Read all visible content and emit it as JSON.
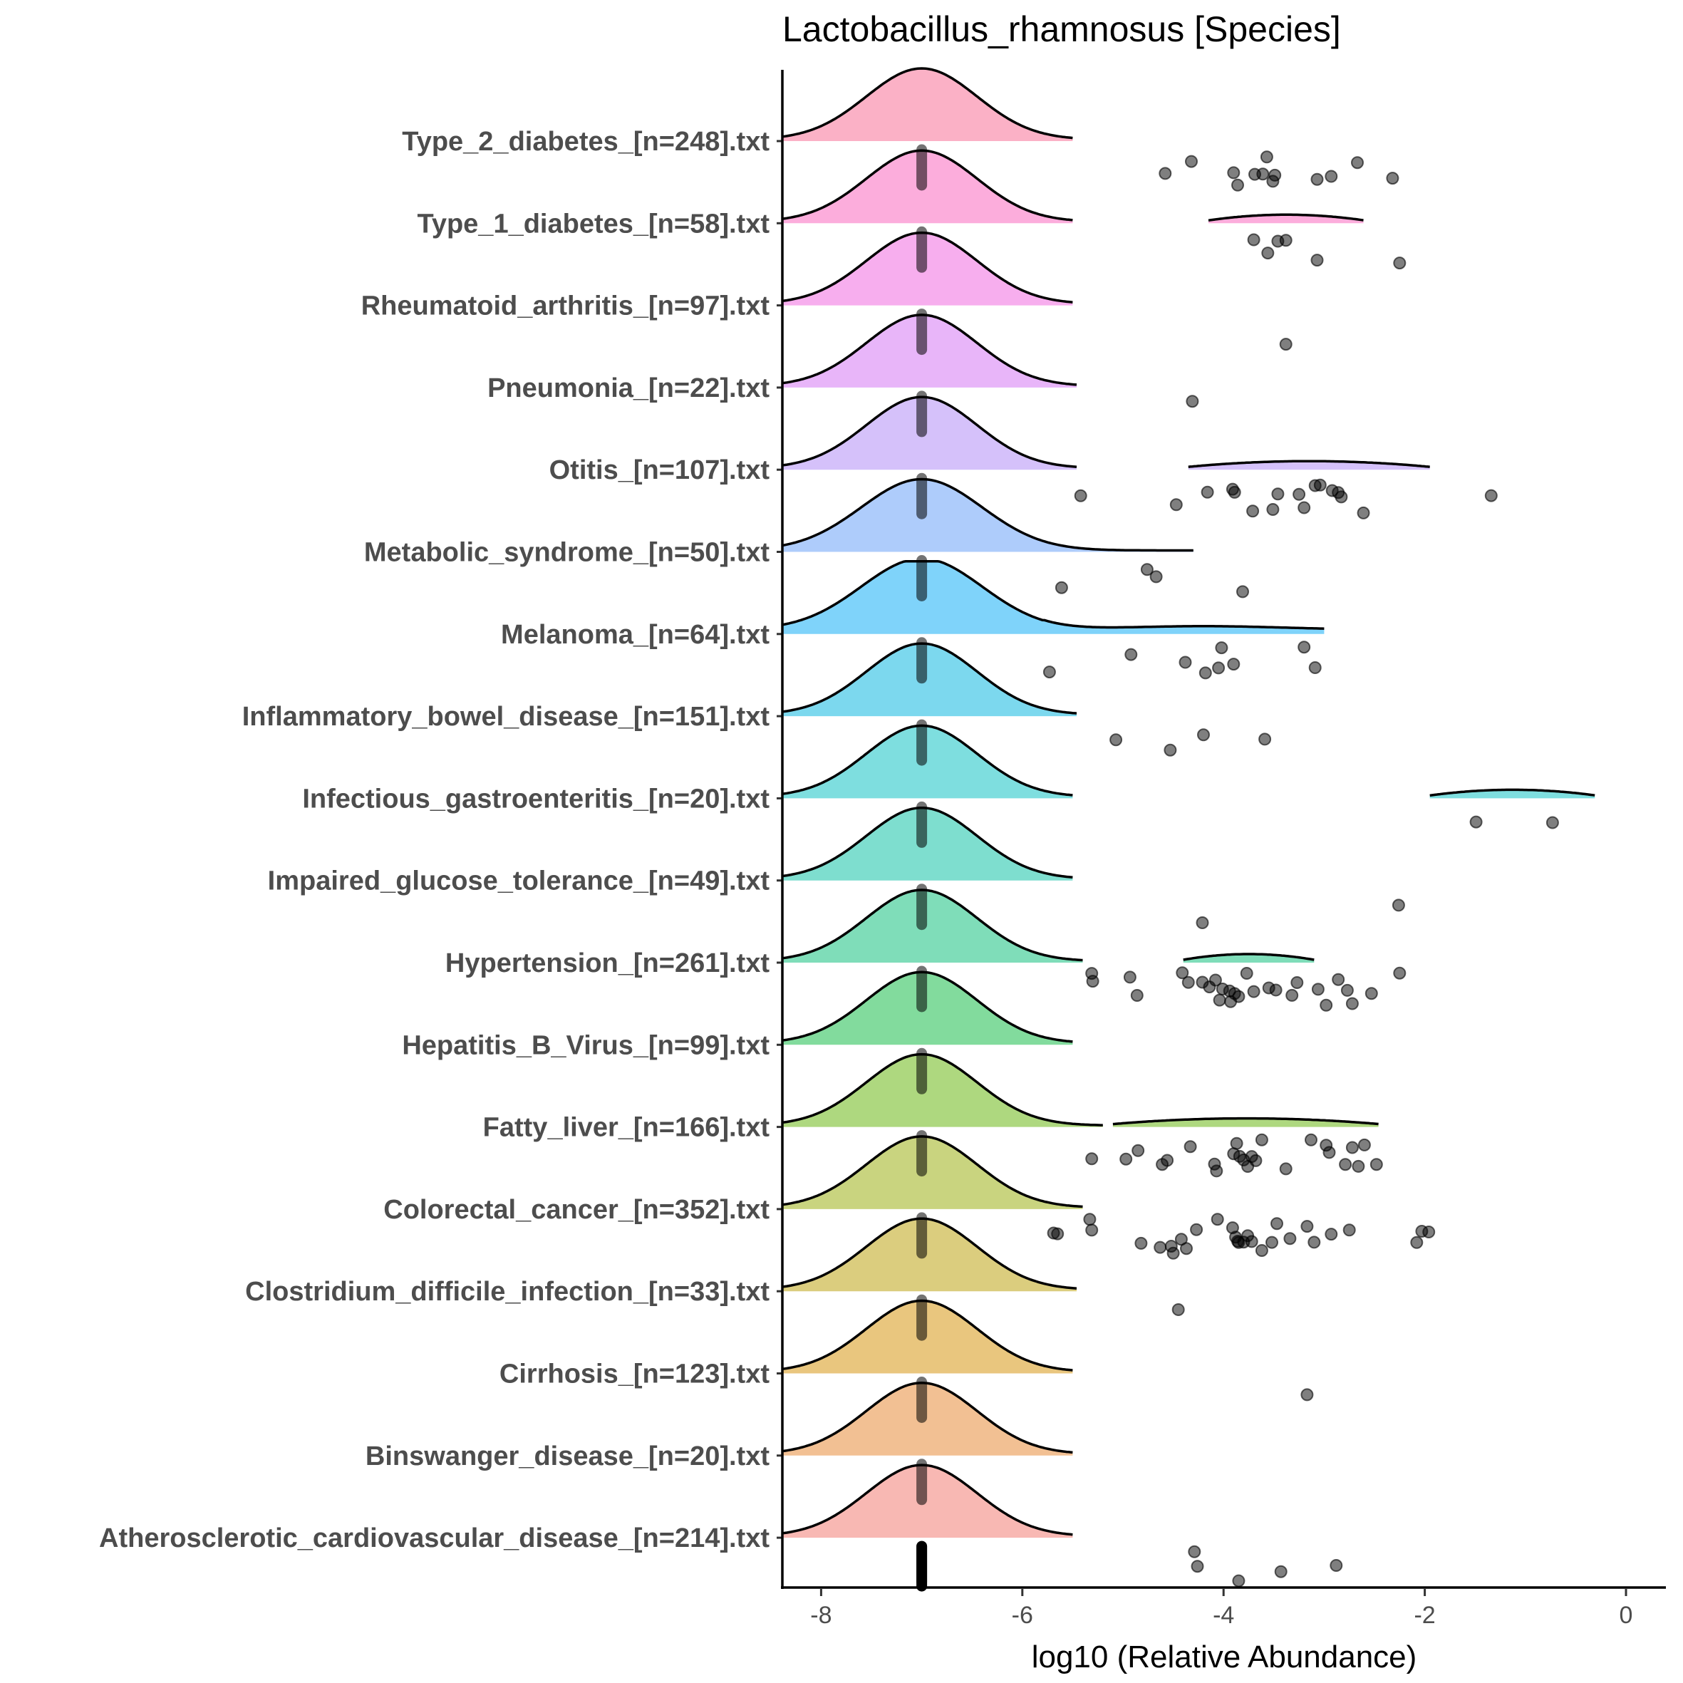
{
  "chart_data": {
    "type": "ridgeline",
    "title": "Lactobacillus_rhamnosus [Species]",
    "xlabel": "log10 (Relative Abundance)",
    "ylabel": "",
    "xlim": [
      -8.4,
      0.5
    ],
    "x_ticks": [
      -8,
      -6,
      -4,
      -2,
      0
    ],
    "x_tick_labels": [
      "-8",
      "-6",
      "-4",
      "-2",
      "0"
    ],
    "grid": false,
    "legend": "none",
    "zero_value": -7,
    "groups": [
      {
        "label": "Type_2_diabetes_[n=248].txt",
        "color": "#FBB1C6",
        "density": {
          "main": {
            "center": -7,
            "sd": 0.55,
            "range": [
              -8.4,
              -5.5
            ]
          },
          "tail": null
        },
        "points": [
          -4.58,
          -4.32,
          -3.9,
          -3.86,
          -3.69,
          -3.61,
          -3.57,
          -3.51,
          -3.49,
          -3.07,
          -2.93,
          -2.67,
          -2.32
        ]
      },
      {
        "label": "Type_1_diabetes_[n=58].txt",
        "color": "#FCADDC",
        "density": {
          "main": {
            "center": -7,
            "sd": 0.55,
            "range": [
              -8.4,
              -5.5
            ]
          },
          "tail": {
            "from": -4.15,
            "to": -2.6
          }
        },
        "points": [
          -3.7,
          -3.56,
          -3.46,
          -3.38,
          -3.07,
          -2.25
        ]
      },
      {
        "label": "Rheumatoid_arthritis_[n=97].txt",
        "color": "#F7AEEE",
        "density": {
          "main": {
            "center": -7,
            "sd": 0.55,
            "range": [
              -8.4,
              -5.5
            ]
          },
          "tail": null
        },
        "points": [
          -3.38
        ]
      },
      {
        "label": "Pneumonia_[n=22].txt",
        "color": "#E8B5F9",
        "density": {
          "main": {
            "center": -7,
            "sd": 0.55,
            "range": [
              -8.4,
              -5.45
            ]
          },
          "tail": null
        },
        "points": [
          -4.31
        ]
      },
      {
        "label": "Otitis_[n=107].txt",
        "color": "#D5C1FA",
        "density": {
          "main": {
            "center": -7,
            "sd": 0.55,
            "range": [
              -8.4,
              -5.45
            ]
          },
          "tail": {
            "from": -4.35,
            "to": -1.95
          }
        },
        "points": [
          -5.42,
          -4.47,
          -4.16,
          -3.91,
          -3.89,
          -3.71,
          -3.51,
          -3.46,
          -3.25,
          -3.2,
          -3.09,
          -3.04,
          -2.92,
          -2.86,
          -2.83,
          -2.61,
          -1.34
        ]
      },
      {
        "label": "Metabolic_syndrome_[n=50].txt",
        "color": "#AECCFB",
        "density": {
          "main": {
            "center": -7,
            "sd": 0.6,
            "range": [
              -8.4,
              -4.3
            ]
          },
          "tail": null
        },
        "points": [
          -5.61,
          -4.76,
          -4.67,
          -3.81
        ]
      },
      {
        "label": "Melanoma_[n=64].txt",
        "color": "#7FD3FA",
        "density": {
          "main": {
            "center": -7,
            "sd": 0.6,
            "range": [
              -8.4,
              -3.0
            ]
          },
          "tail": {
            "from": -5.5,
            "to": -3.0,
            "bump": -4.2
          }
        },
        "points": [
          -5.73,
          -4.92,
          -4.38,
          -4.18,
          -4.05,
          -4.02,
          -3.9,
          -3.2,
          -3.09
        ]
      },
      {
        "label": "Inflammatory_bowel_disease_[n=151].txt",
        "color": "#7CD8EE",
        "density": {
          "main": {
            "center": -7,
            "sd": 0.55,
            "range": [
              -8.4,
              -5.45
            ]
          },
          "tail": null
        },
        "points": [
          -5.07,
          -4.53,
          -4.2,
          -3.59
        ]
      },
      {
        "label": "Infectious_gastroenteritis_[n=20].txt",
        "color": "#7EDEDF",
        "density": {
          "main": {
            "center": -7,
            "sd": 0.55,
            "range": [
              -8.4,
              -5.5
            ]
          },
          "tail": {
            "from": -1.95,
            "to": -0.3
          }
        },
        "points": [
          -1.49,
          -0.73
        ]
      },
      {
        "label": "Impaired_glucose_tolerance_[n=49].txt",
        "color": "#7EDECF",
        "density": {
          "main": {
            "center": -7,
            "sd": 0.55,
            "range": [
              -8.4,
              -5.5
            ]
          },
          "tail": null
        },
        "points": [
          -4.21,
          -2.26
        ]
      },
      {
        "label": "Hypertension_[n=261].txt",
        "color": "#7FDDB9",
        "density": {
          "main": {
            "center": -7,
            "sd": 0.55,
            "range": [
              -8.4,
              -5.4
            ]
          },
          "tail": {
            "from": -4.4,
            "to": -3.1
          }
        },
        "points": [
          -5.31,
          -5.3,
          -4.93,
          -4.86,
          -4.41,
          -4.35,
          -4.21,
          -4.14,
          -4.08,
          -4.04,
          -4.01,
          -3.94,
          -3.93,
          -3.89,
          -3.85,
          -3.77,
          -3.7,
          -3.55,
          -3.48,
          -3.32,
          -3.27,
          -3.06,
          -2.98,
          -2.86,
          -2.77,
          -2.72,
          -2.53,
          -2.25
        ]
      },
      {
        "label": "Hepatitis_B_Virus_[n=99].txt",
        "color": "#82DB9D",
        "density": {
          "main": {
            "center": -7,
            "sd": 0.55,
            "range": [
              -8.4,
              -5.5
            ]
          },
          "tail": null
        },
        "points": []
      },
      {
        "label": "Fatty_liver_[n=166].txt",
        "color": "#AED87F",
        "density": {
          "main": {
            "center": -7,
            "sd": 0.55,
            "range": [
              -8.4,
              -5.2
            ]
          },
          "tail": {
            "from": -5.1,
            "to": -2.45
          }
        },
        "points": [
          -5.31,
          -4.97,
          -4.85,
          -4.61,
          -4.56,
          -4.33,
          -4.09,
          -4.07,
          -3.9,
          -3.87,
          -3.84,
          -3.8,
          -3.76,
          -3.72,
          -3.68,
          -3.62,
          -3.38,
          -3.13,
          -2.98,
          -2.95,
          -2.79,
          -2.72,
          -2.66,
          -2.6,
          -2.48
        ]
      },
      {
        "label": "Colorectal_cancer_[n=352].txt",
        "color": "#C9D47F",
        "density": {
          "main": {
            "center": -7,
            "sd": 0.55,
            "range": [
              -8.4,
              -5.4
            ]
          },
          "tail": null
        },
        "points": [
          -5.69,
          -5.65,
          -5.33,
          -5.31,
          -4.82,
          -4.63,
          -4.52,
          -4.5,
          -4.42,
          -4.37,
          -4.27,
          -4.06,
          -3.91,
          -3.88,
          -3.86,
          -3.85,
          -3.8,
          -3.76,
          -3.72,
          -3.62,
          -3.52,
          -3.47,
          -3.34,
          -3.17,
          -3.1,
          -2.93,
          -2.75,
          -2.08,
          -2.03,
          -1.96
        ]
      },
      {
        "label": "Clostridium_difficile_infection_[n=33].txt",
        "color": "#DBCD7E",
        "density": {
          "main": {
            "center": -7,
            "sd": 0.55,
            "range": [
              -8.4,
              -5.45
            ]
          },
          "tail": null
        },
        "points": [
          -4.45
        ]
      },
      {
        "label": "Cirrhosis_[n=123].txt",
        "color": "#E9C67E",
        "density": {
          "main": {
            "center": -7,
            "sd": 0.55,
            "range": [
              -8.4,
              -5.5
            ]
          },
          "tail": null
        },
        "points": [
          -3.17
        ]
      },
      {
        "label": "Binswanger_disease_[n=20].txt",
        "color": "#F2C093",
        "density": {
          "main": {
            "center": -7,
            "sd": 0.55,
            "range": [
              -8.4,
              -5.5
            ]
          },
          "tail": null
        },
        "points": []
      },
      {
        "label": "Atherosclerotic_cardiovascular_disease_[n=214].txt",
        "color": "#F8B8B3",
        "density": {
          "main": {
            "center": -7,
            "sd": 0.55,
            "range": [
              -8.4,
              -5.5
            ]
          },
          "tail": null
        },
        "points": [
          -4.29,
          -4.26,
          -3.85,
          -3.43,
          -2.88
        ]
      }
    ]
  }
}
